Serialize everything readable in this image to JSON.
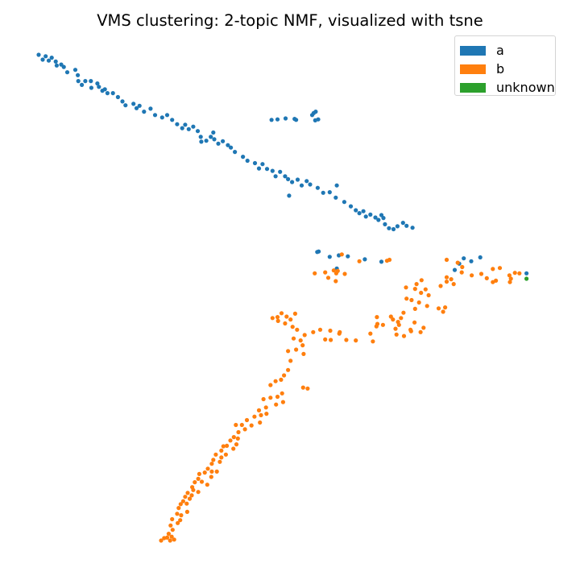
{
  "chart_data": {
    "type": "scatter",
    "title": "VMS clustering: 2-topic NMF, visualized with tsne",
    "axes_visible": false,
    "grid": false,
    "legend_position": "top-right",
    "xlim": [
      0,
      100
    ],
    "ylim": [
      0,
      100
    ],
    "series": [
      {
        "name": "a",
        "color": "#1f77b4",
        "points": [
          [
            0.0,
            100.0
          ],
          [
            0.8,
            99.0
          ],
          [
            1.4,
            99.7
          ],
          [
            2.0,
            98.8
          ],
          [
            2.6,
            99.4
          ],
          [
            3.4,
            98.6
          ],
          [
            3.6,
            97.8
          ],
          [
            4.5,
            98.0
          ],
          [
            5.0,
            97.5
          ],
          [
            5.7,
            96.4
          ],
          [
            7.3,
            96.9
          ],
          [
            7.8,
            95.8
          ],
          [
            7.9,
            94.6
          ],
          [
            8.6,
            93.8
          ],
          [
            9.3,
            94.6
          ],
          [
            10.4,
            94.6
          ],
          [
            10.5,
            93.2
          ],
          [
            11.7,
            94.1
          ],
          [
            12.0,
            93.4
          ],
          [
            12.7,
            92.6
          ],
          [
            13.2,
            92.9
          ],
          [
            13.7,
            92.1
          ],
          [
            14.8,
            92.1
          ],
          [
            15.8,
            91.3
          ],
          [
            16.7,
            90.4
          ],
          [
            17.3,
            89.6
          ],
          [
            18.9,
            89.9
          ],
          [
            19.5,
            89.0
          ],
          [
            20.1,
            89.5
          ],
          [
            21.0,
            88.3
          ],
          [
            22.3,
            88.9
          ],
          [
            23.2,
            87.6
          ],
          [
            24.6,
            87.1
          ],
          [
            25.6,
            87.6
          ],
          [
            26.6,
            86.6
          ],
          [
            27.6,
            85.7
          ],
          [
            28.6,
            84.9
          ],
          [
            29.2,
            85.6
          ],
          [
            29.9,
            84.7
          ],
          [
            30.8,
            85.2
          ],
          [
            31.7,
            84.3
          ],
          [
            32.3,
            83.1
          ],
          [
            32.4,
            82.1
          ],
          [
            33.4,
            82.3
          ],
          [
            34.3,
            83.1
          ],
          [
            34.8,
            84.0
          ],
          [
            35.0,
            82.6
          ],
          [
            35.8,
            81.7
          ],
          [
            36.7,
            82.2
          ],
          [
            37.7,
            81.4
          ],
          [
            38.3,
            80.9
          ],
          [
            39.1,
            80.0
          ],
          [
            40.7,
            79.0
          ],
          [
            41.6,
            78.2
          ],
          [
            43.1,
            77.7
          ],
          [
            43.9,
            76.6
          ],
          [
            44.6,
            77.5
          ],
          [
            45.5,
            76.5
          ],
          [
            46.6,
            76.1
          ],
          [
            47.2,
            75.0
          ],
          [
            48.1,
            75.9
          ],
          [
            49.1,
            75.0
          ],
          [
            49.7,
            74.4
          ],
          [
            50.5,
            73.8
          ],
          [
            51.6,
            74.3
          ],
          [
            52.4,
            73.1
          ],
          [
            53.4,
            74.0
          ],
          [
            54.1,
            73.3
          ],
          [
            55.6,
            72.6
          ],
          [
            56.7,
            71.6
          ],
          [
            58.0,
            71.7
          ],
          [
            59.2,
            70.6
          ],
          [
            59.4,
            73.1
          ],
          [
            60.9,
            69.7
          ],
          [
            62.2,
            68.8
          ],
          [
            63.2,
            68.0
          ],
          [
            63.9,
            67.4
          ],
          [
            64.7,
            67.8
          ],
          [
            65.2,
            66.7
          ],
          [
            66.1,
            67.1
          ],
          [
            67.1,
            66.5
          ],
          [
            67.7,
            66.0
          ],
          [
            68.3,
            67.0
          ],
          [
            68.7,
            66.4
          ],
          [
            69.0,
            65.1
          ],
          [
            69.8,
            64.3
          ],
          [
            70.7,
            64.1
          ],
          [
            71.5,
            64.7
          ],
          [
            72.6,
            65.4
          ],
          [
            73.3,
            64.8
          ],
          [
            74.5,
            64.4
          ],
          [
            46.4,
            86.6
          ],
          [
            47.6,
            86.7
          ],
          [
            49.2,
            86.9
          ],
          [
            51.0,
            86.8
          ],
          [
            51.3,
            86.6
          ],
          [
            54.5,
            87.6
          ],
          [
            54.8,
            88.0
          ],
          [
            55.2,
            88.3
          ],
          [
            55.1,
            86.5
          ],
          [
            55.7,
            86.7
          ],
          [
            49.9,
            71.0
          ],
          [
            55.5,
            59.4
          ],
          [
            55.8,
            59.5
          ],
          [
            58.0,
            58.4
          ],
          [
            59.8,
            58.7
          ],
          [
            61.6,
            58.5
          ],
          [
            59.4,
            56.0
          ],
          [
            65.0,
            57.9
          ],
          [
            68.3,
            57.4
          ],
          [
            83.8,
            57.0
          ],
          [
            84.7,
            58.1
          ],
          [
            86.2,
            57.5
          ],
          [
            88.0,
            58.3
          ],
          [
            82.9,
            55.7
          ],
          [
            97.2,
            55.0
          ]
        ]
      },
      {
        "name": "b",
        "color": "#ff7f0e",
        "points": [
          [
            60.4,
            58.9
          ],
          [
            63.9,
            57.5
          ],
          [
            69.4,
            57.6
          ],
          [
            69.9,
            57.8
          ],
          [
            55.0,
            55.0
          ],
          [
            57.1,
            55.2
          ],
          [
            58.8,
            55.6
          ],
          [
            59.3,
            55.0
          ],
          [
            59.6,
            55.5
          ],
          [
            61.0,
            54.9
          ],
          [
            57.7,
            54.1
          ],
          [
            59.2,
            53.4
          ],
          [
            81.3,
            57.8
          ],
          [
            83.5,
            57.2
          ],
          [
            84.4,
            56.3
          ],
          [
            84.3,
            55.2
          ],
          [
            86.3,
            54.6
          ],
          [
            88.2,
            54.9
          ],
          [
            90.5,
            55.9
          ],
          [
            91.9,
            56.1
          ],
          [
            89.3,
            54.0
          ],
          [
            81.3,
            54.2
          ],
          [
            82.2,
            53.8
          ],
          [
            90.5,
            53.2
          ],
          [
            91.1,
            53.5
          ],
          [
            93.8,
            54.6
          ],
          [
            94.9,
            55.1
          ],
          [
            95.8,
            55.0
          ],
          [
            93.9,
            53.2
          ],
          [
            94.1,
            53.9
          ],
          [
            76.3,
            53.6
          ],
          [
            75.3,
            52.8
          ],
          [
            75.0,
            51.8
          ],
          [
            73.2,
            52.1
          ],
          [
            77.1,
            51.7
          ],
          [
            76.2,
            51.0
          ],
          [
            77.7,
            50.5
          ],
          [
            75.8,
            49.0
          ],
          [
            77.4,
            48.3
          ],
          [
            80.1,
            52.4
          ],
          [
            81.3,
            53.3
          ],
          [
            82.7,
            52.8
          ],
          [
            73.3,
            49.8
          ],
          [
            74.3,
            49.5
          ],
          [
            79.7,
            47.8
          ],
          [
            81.0,
            48.0
          ],
          [
            80.6,
            47.1
          ],
          [
            75.0,
            47.7
          ],
          [
            72.7,
            46.9
          ],
          [
            72.2,
            45.8
          ],
          [
            71.6,
            45.0
          ],
          [
            70.2,
            46.1
          ],
          [
            71.8,
            44.4
          ],
          [
            71.1,
            43.6
          ],
          [
            76.7,
            43.8
          ],
          [
            76.1,
            42.9
          ],
          [
            74.2,
            43.1
          ],
          [
            72.8,
            42.1
          ],
          [
            71.3,
            42.4
          ],
          [
            67.4,
            46.0
          ],
          [
            67.5,
            44.6
          ],
          [
            68.6,
            44.4
          ],
          [
            70.6,
            45.5
          ],
          [
            67.3,
            44.1
          ],
          [
            74.9,
            44.9
          ],
          [
            74.1,
            43.4
          ],
          [
            66.1,
            42.6
          ],
          [
            46.6,
            45.8
          ],
          [
            47.6,
            46.0
          ],
          [
            47.7,
            45.2
          ],
          [
            48.4,
            46.8
          ],
          [
            49.1,
            44.7
          ],
          [
            49.4,
            46.1
          ],
          [
            50.2,
            45.5
          ],
          [
            51.1,
            46.7
          ],
          [
            50.6,
            44.0
          ],
          [
            50.8,
            41.6
          ],
          [
            51.5,
            43.4
          ],
          [
            52.2,
            41.2
          ],
          [
            53.0,
            42.3
          ],
          [
            52.6,
            40.2
          ],
          [
            54.7,
            42.9
          ],
          [
            56.1,
            43.4
          ],
          [
            58.1,
            43.2
          ],
          [
            59.9,
            42.6
          ],
          [
            60.0,
            42.9
          ],
          [
            57.1,
            41.4
          ],
          [
            58.2,
            41.3
          ],
          [
            61.3,
            41.3
          ],
          [
            63.2,
            41.2
          ],
          [
            66.6,
            41.0
          ],
          [
            49.7,
            39.0
          ],
          [
            51.3,
            39.3
          ],
          [
            52.8,
            38.4
          ],
          [
            50.2,
            37.0
          ],
          [
            49.7,
            35.1
          ],
          [
            48.9,
            34.0
          ],
          [
            48.3,
            33.1
          ],
          [
            47.2,
            32.8
          ],
          [
            46.2,
            32.0
          ],
          [
            48.5,
            30.3
          ],
          [
            52.7,
            31.5
          ],
          [
            53.6,
            31.3
          ],
          [
            47.6,
            29.6
          ],
          [
            46.2,
            29.4
          ],
          [
            48.7,
            28.5
          ],
          [
            44.8,
            29.1
          ],
          [
            47.3,
            28.0
          ],
          [
            45.3,
            27.4
          ],
          [
            43.9,
            26.8
          ],
          [
            45.4,
            26.1
          ],
          [
            44.3,
            25.8
          ],
          [
            43.0,
            25.5
          ],
          [
            44.1,
            24.3
          ],
          [
            42.4,
            23.7
          ],
          [
            41.5,
            24.8
          ],
          [
            40.5,
            23.8
          ],
          [
            41.1,
            22.9
          ],
          [
            39.3,
            23.8
          ],
          [
            39.8,
            22.3
          ],
          [
            38.9,
            21.3
          ],
          [
            39.7,
            21.0
          ],
          [
            38.2,
            20.6
          ],
          [
            39.4,
            19.8
          ],
          [
            37.5,
            19.5
          ],
          [
            38.8,
            18.9
          ],
          [
            36.8,
            19.4
          ],
          [
            36.4,
            18.5
          ],
          [
            37.3,
            17.7
          ],
          [
            35.3,
            17.7
          ],
          [
            36.4,
            17.1
          ],
          [
            34.8,
            16.6
          ],
          [
            36.1,
            16.2
          ],
          [
            34.5,
            15.8
          ],
          [
            33.7,
            14.8
          ],
          [
            34.5,
            14.2
          ],
          [
            33.1,
            14.0
          ],
          [
            35.5,
            14.2
          ],
          [
            32.0,
            13.7
          ],
          [
            34.4,
            13.1
          ],
          [
            31.8,
            12.7
          ],
          [
            32.5,
            12.1
          ],
          [
            33.6,
            11.5
          ],
          [
            31.1,
            12.0
          ],
          [
            30.6,
            11.0
          ],
          [
            30.8,
            10.4
          ],
          [
            31.8,
            10.0
          ],
          [
            30.5,
            9.3
          ],
          [
            29.7,
            9.8
          ],
          [
            29.2,
            9.0
          ],
          [
            28.8,
            8.1
          ],
          [
            30.1,
            8.6
          ],
          [
            28.3,
            7.5
          ],
          [
            27.9,
            6.7
          ],
          [
            29.5,
            7.6
          ],
          [
            27.6,
            5.5
          ],
          [
            28.4,
            5.2
          ],
          [
            29.6,
            5.9
          ],
          [
            28.2,
            4.2
          ],
          [
            26.6,
            4.4
          ],
          [
            27.7,
            3.6
          ],
          [
            26.3,
            3.1
          ],
          [
            26.7,
            2.2
          ],
          [
            25.9,
            1.4
          ],
          [
            26.5,
            0.8
          ],
          [
            27.0,
            0.2
          ],
          [
            26.2,
            0.0
          ],
          [
            25.0,
            0.5
          ],
          [
            24.4,
            0.0
          ],
          [
            25.6,
            0.6
          ]
        ]
      },
      {
        "name": "unknown",
        "color": "#2ca02c",
        "points": [
          [
            97.2,
            53.9
          ]
        ]
      }
    ]
  }
}
